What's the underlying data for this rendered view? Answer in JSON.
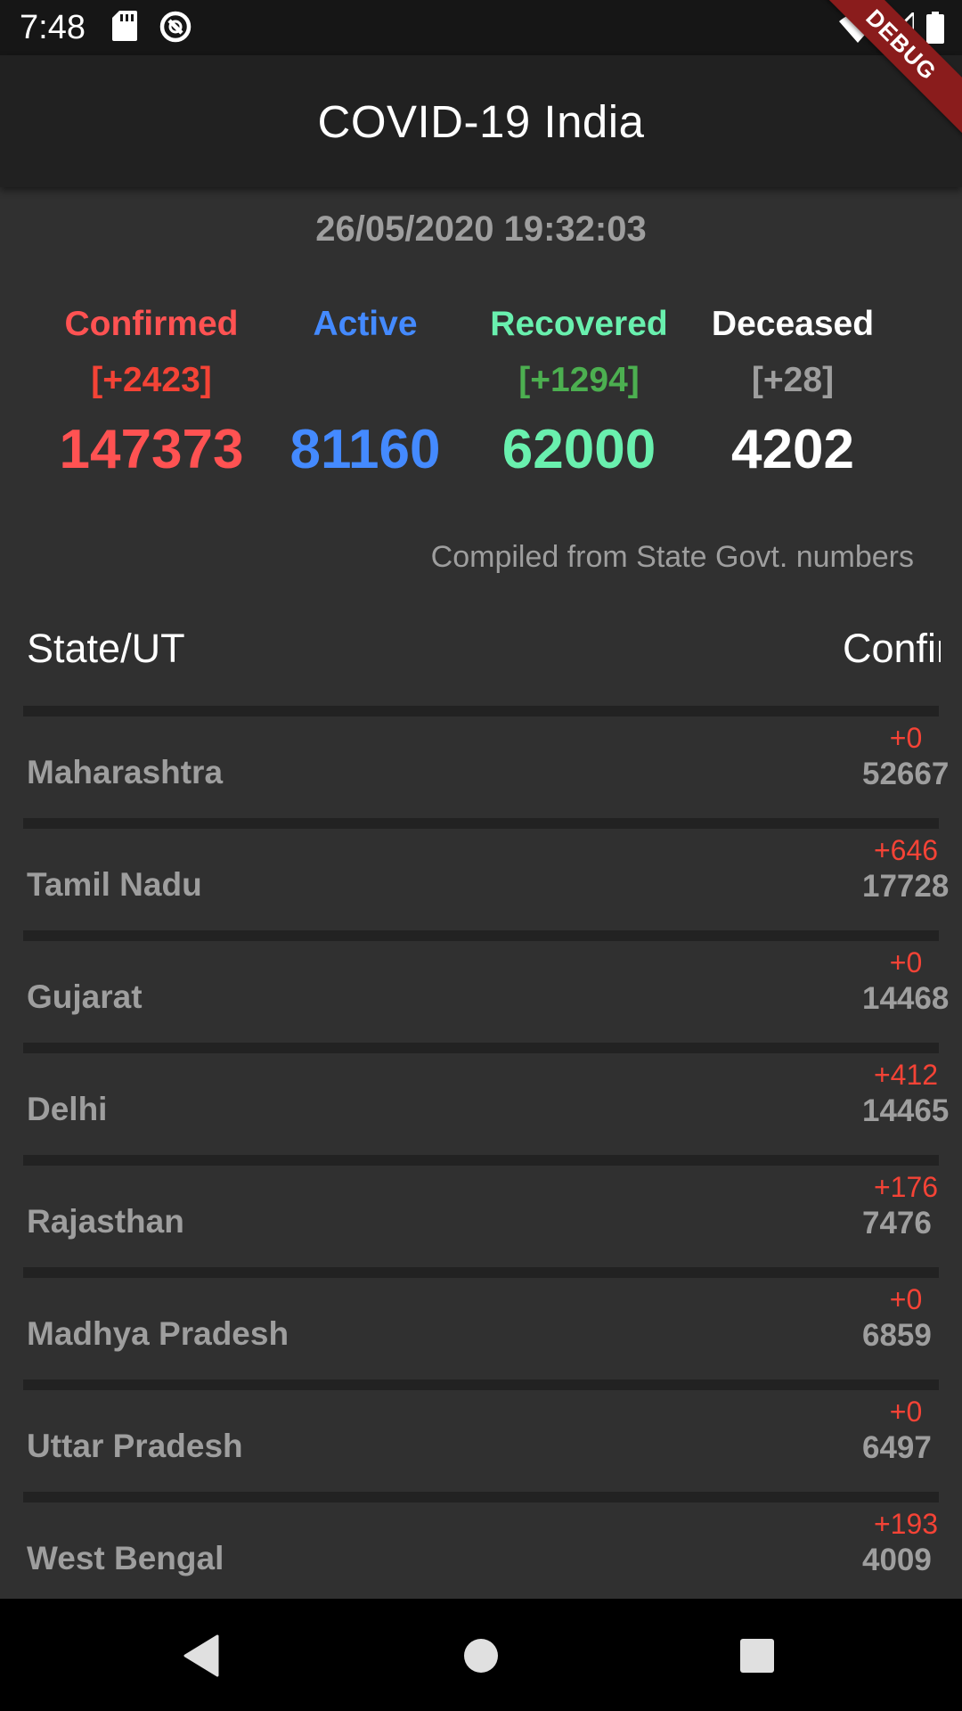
{
  "status_bar": {
    "time": "7:48",
    "icons": [
      "sd-card-icon",
      "sync-icon",
      "wifi-icon",
      "signal-icon",
      "battery-icon"
    ]
  },
  "debug_banner": "DEBUG",
  "app_bar": {
    "title": "COVID-19 India"
  },
  "timestamp": "26/05/2020 19:32:03",
  "summary": {
    "confirmed": {
      "label": "Confirmed",
      "delta": "[+2423]",
      "total": "147373",
      "label_color": "#ff5252",
      "delta_color": "#f44336",
      "total_color": "#ff5252"
    },
    "active": {
      "label": "Active",
      "delta": "",
      "total": "81160",
      "label_color": "#448aff",
      "delta_color": "#448aff",
      "total_color": "#448aff"
    },
    "recovered": {
      "label": "Recovered",
      "delta": "[+1294]",
      "total": "62000",
      "label_color": "#69f0ae",
      "delta_color": "#4caf50",
      "total_color": "#69f0ae"
    },
    "deceased": {
      "label": "Deceased",
      "delta": "[+28]",
      "total": "4202",
      "label_color": "#ffffff",
      "delta_color": "#9e9e9e",
      "total_color": "#ffffff"
    }
  },
  "source_note": "Compiled from State Govt. numbers",
  "table": {
    "header_state": "State/UT",
    "header_confirmed": "Confirmed",
    "rows": [
      {
        "state": "Maharashtra",
        "delta": "+0",
        "confirmed": "52667"
      },
      {
        "state": "Tamil Nadu",
        "delta": "+646",
        "confirmed": "17728"
      },
      {
        "state": "Gujarat",
        "delta": "+0",
        "confirmed": "14468"
      },
      {
        "state": "Delhi",
        "delta": "+412",
        "confirmed": "14465"
      },
      {
        "state": "Rajasthan",
        "delta": "+176",
        "confirmed": "7476"
      },
      {
        "state": "Madhya Pradesh",
        "delta": "+0",
        "confirmed": "6859"
      },
      {
        "state": "Uttar Pradesh",
        "delta": "+0",
        "confirmed": "6497"
      },
      {
        "state": "West Bengal",
        "delta": "+193",
        "confirmed": "4009"
      }
    ]
  },
  "nav_bar": {
    "icons": [
      "back-icon",
      "home-icon",
      "recents-icon"
    ]
  }
}
